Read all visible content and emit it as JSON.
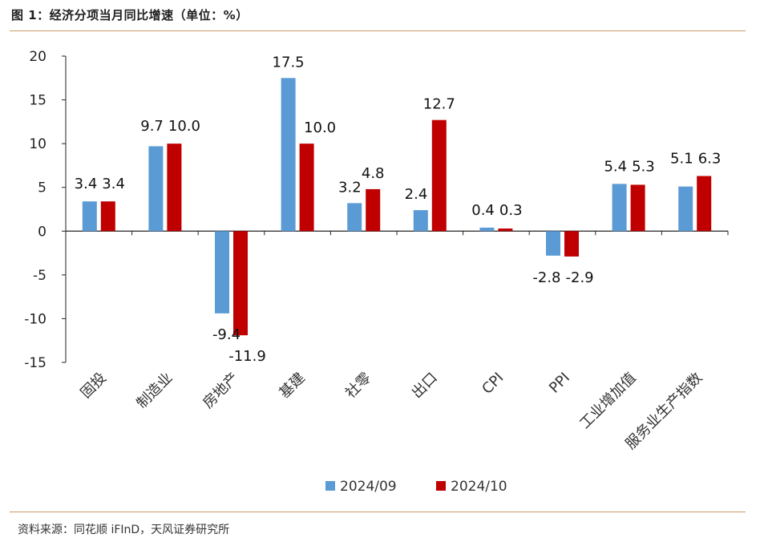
{
  "page": {
    "title": "图 1：经济分项当月同比增速（单位：%）",
    "source": "资料来源：同花顺 iFInD，天风证券研究所"
  },
  "chart_data": {
    "type": "bar",
    "title": "经济分项当月同比增速（单位：%）",
    "categories": [
      "固投",
      "制造业",
      "房地产",
      "基建",
      "社零",
      "出口",
      "CPI",
      "PPI",
      "工业增加值",
      "服务业生产指数"
    ],
    "series": [
      {
        "name": "2024/09",
        "color": "#5b9bd5",
        "values": [
          3.4,
          9.7,
          -9.4,
          17.5,
          3.2,
          2.4,
          0.4,
          -2.8,
          5.4,
          5.1
        ]
      },
      {
        "name": "2024/10",
        "color": "#c00000",
        "values": [
          3.4,
          10.0,
          -11.9,
          10.0,
          4.8,
          12.7,
          0.3,
          -2.9,
          5.3,
          6.3
        ]
      }
    ],
    "ylim": [
      -15,
      20
    ],
    "yticks": [
      -15,
      -10,
      -5,
      0,
      5,
      10,
      15,
      20
    ],
    "xlabel": "",
    "ylabel": "",
    "grid": false,
    "legend": "bottom"
  }
}
